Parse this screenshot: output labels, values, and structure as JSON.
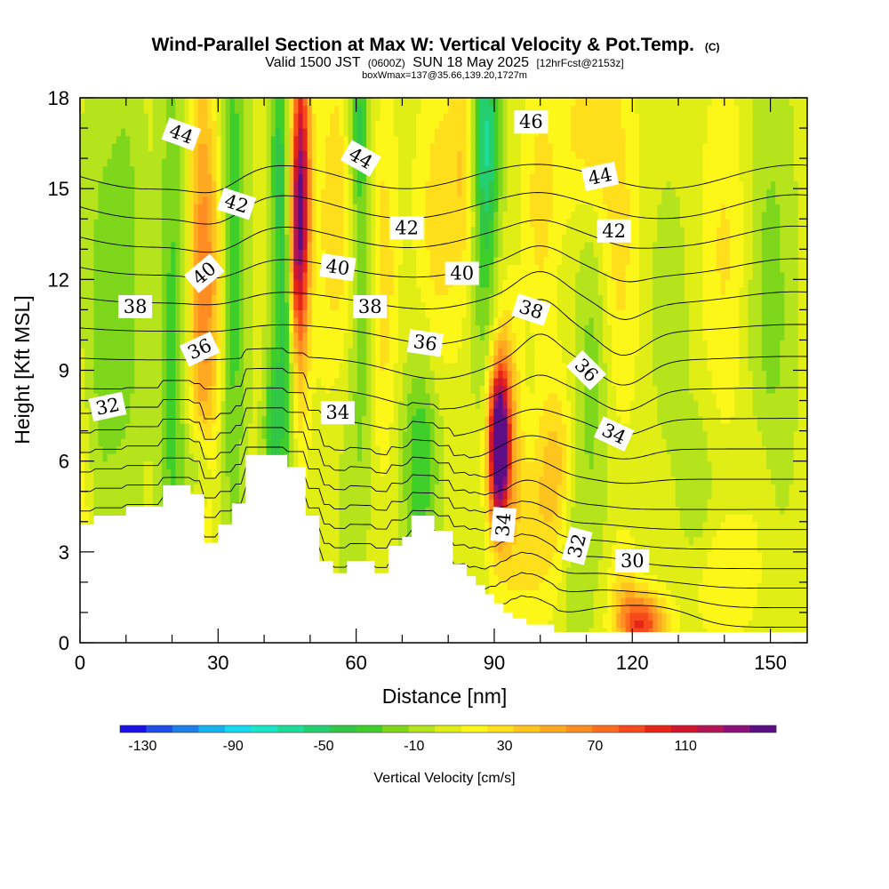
{
  "chart_data": {
    "type": "heatmap",
    "title": "Wind-Parallel Section at Max W: Vertical Velocity & Pot.Temp.",
    "title_suffix": "(C)",
    "subtitle_main": "Valid 1500 JST",
    "subtitle_z": "(0600Z)",
    "subtitle_date": "SUN 18 May 2025",
    "subtitle_fcst": "[12hrFcst@2153z]",
    "subtitle2": "boxWmax=137@35.66,139.20,1727m",
    "xlabel": "Distance [nm]",
    "ylabel": "Height [Kft MSL]",
    "xlim": [
      0,
      158
    ],
    "ylim": [
      0,
      18
    ],
    "x_ticks": [
      0,
      30,
      60,
      90,
      120,
      150
    ],
    "y_ticks": [
      0,
      3,
      6,
      9,
      12,
      15,
      18
    ],
    "colorbar": {
      "label": "Vertical Velocity [cm/s]",
      "range": [
        -140,
        150
      ],
      "tick_values": [
        -130,
        -90,
        -50,
        -10,
        30,
        70,
        110
      ],
      "tick_labels": [
        "-130",
        "-90",
        "-50",
        "-10",
        "30",
        "70",
        "110"
      ],
      "colors": [
        "#1a10e6",
        "#1f4de8",
        "#1f7fe8",
        "#16b2ee",
        "#15d9ee",
        "#1ae6c8",
        "#1edc99",
        "#24cf6f",
        "#31c646",
        "#3fcf2a",
        "#7fd71c",
        "#b6e41c",
        "#e0ee16",
        "#fdf719",
        "#ffdf1c",
        "#ffc51f",
        "#ffa923",
        "#ff8d22",
        "#ff6c1f",
        "#f74a1b",
        "#e52617",
        "#d0162d",
        "#b21454",
        "#8a107a",
        "#5d0d86"
      ]
    },
    "w_field": {
      "background": 4,
      "features": [
        {
          "x": 0,
          "z": 3,
          "sx": 3,
          "sz": 5,
          "amp": 22
        },
        {
          "x": 4,
          "z": 10,
          "sx": 4,
          "sz": 10,
          "amp": -18
        },
        {
          "x": 10,
          "z": 12,
          "sx": 4,
          "sz": 8,
          "amp": -22
        },
        {
          "x": 20,
          "z": 9,
          "sx": 3,
          "sz": 12,
          "amp": -32
        },
        {
          "x": 26,
          "z": 12,
          "sx": 2.5,
          "sz": 8,
          "amp": 45
        },
        {
          "x": 29,
          "z": 12,
          "sx": 3,
          "sz": 6,
          "amp": 40
        },
        {
          "x": 26,
          "z": 5.8,
          "sx": 2.5,
          "sz": 1.6,
          "amp": -32
        },
        {
          "x": 33,
          "z": 13,
          "sx": 3,
          "sz": 10,
          "amp": -40
        },
        {
          "x": 42,
          "z": 7,
          "sx": 2,
          "sz": 3,
          "amp": -45
        },
        {
          "x": 45,
          "z": 11,
          "sx": 2,
          "sz": 6,
          "amp": -55
        },
        {
          "x": 43,
          "z": 16,
          "sx": 2,
          "sz": 4,
          "amp": -35
        },
        {
          "x": 47,
          "z": 12,
          "sx": 2.3,
          "sz": 7,
          "amp": 25
        },
        {
          "x": 48,
          "z": 15,
          "sx": 2,
          "sz": 5,
          "amp": 110
        },
        {
          "x": 46.5,
          "z": 13,
          "sx": 1.7,
          "sz": 3,
          "amp": 45
        },
        {
          "x": 56,
          "z": 14,
          "sx": 5,
          "sz": 6,
          "amp": 28
        },
        {
          "x": 58,
          "z": 6,
          "sx": 4,
          "sz": 5,
          "amp": -10
        },
        {
          "x": 61,
          "z": 14,
          "sx": 2.5,
          "sz": 8,
          "amp": -35
        },
        {
          "x": 60,
          "z": 17,
          "sx": 2,
          "sz": 2,
          "amp": -25
        },
        {
          "x": 66,
          "z": 12,
          "sx": 3,
          "sz": 6,
          "amp": 25
        },
        {
          "x": 74,
          "z": 6,
          "sx": 4,
          "sz": 3.5,
          "amp": -40
        },
        {
          "x": 78,
          "z": 14,
          "sx": 5,
          "sz": 5,
          "amp": 25
        },
        {
          "x": 84,
          "z": 16,
          "sx": 3.5,
          "sz": 4,
          "amp": 28
        },
        {
          "x": 88,
          "z": 14,
          "sx": 3,
          "sz": 6,
          "amp": -40
        },
        {
          "x": 88,
          "z": 17,
          "sx": 3,
          "sz": 3,
          "amp": -40
        },
        {
          "x": 91,
          "z": 6.5,
          "sx": 2,
          "sz": 2.3,
          "amp": 150
        },
        {
          "x": 92,
          "z": 7,
          "sx": 3.5,
          "sz": 4,
          "amp": 60
        },
        {
          "x": 98,
          "z": 3.5,
          "sx": 5,
          "sz": 3.5,
          "amp": 25
        },
        {
          "x": 100,
          "z": 14,
          "sx": 4,
          "sz": 5,
          "amp": 25
        },
        {
          "x": 99,
          "z": 8,
          "sx": 5,
          "sz": 5,
          "amp": -10
        },
        {
          "x": 103,
          "z": 6,
          "sx": 4,
          "sz": 3,
          "amp": 35
        },
        {
          "x": 112,
          "z": 10,
          "sx": 4,
          "sz": 6,
          "amp": -28
        },
        {
          "x": 116,
          "z": 13,
          "sx": 5,
          "sz": 6,
          "amp": 28
        },
        {
          "x": 110,
          "z": 17,
          "sx": 6,
          "sz": 3,
          "amp": 25
        },
        {
          "x": 108,
          "z": 3,
          "sx": 3,
          "sz": 4,
          "amp": -15
        },
        {
          "x": 122,
          "z": 0.6,
          "sx": 5,
          "sz": 1.0,
          "amp": 90
        },
        {
          "x": 118,
          "z": 2.0,
          "sx": 3,
          "sz": 1.5,
          "amp": 25
        },
        {
          "x": 140,
          "z": 2,
          "sx": 8,
          "sz": 2,
          "amp": 18
        },
        {
          "x": 128,
          "z": 11,
          "sx": 4,
          "sz": 4,
          "amp": -15
        },
        {
          "x": 140,
          "z": 13,
          "sx": 5,
          "sz": 6,
          "amp": 20
        },
        {
          "x": 150,
          "z": 11,
          "sx": 5,
          "sz": 8,
          "amp": -22
        },
        {
          "x": 134,
          "z": 5,
          "sx": 4,
          "sz": 3,
          "amp": -15
        },
        {
          "x": 148,
          "z": 5,
          "sx": 4,
          "sz": 3,
          "amp": 12
        }
      ]
    },
    "terrain": [
      [
        0,
        3.9
      ],
      [
        3,
        4.2
      ],
      [
        10,
        4.5
      ],
      [
        18,
        5.2
      ],
      [
        24,
        4.9
      ],
      [
        27,
        3.3
      ],
      [
        30,
        3.9
      ],
      [
        33,
        4.6
      ],
      [
        36,
        6.2
      ],
      [
        45,
        5.8
      ],
      [
        49,
        4.2
      ],
      [
        52,
        2.7
      ],
      [
        55,
        2.3
      ],
      [
        58,
        2.7
      ],
      [
        64,
        2.3
      ],
      [
        67,
        3.2
      ],
      [
        70,
        3.5
      ],
      [
        72,
        4.2
      ],
      [
        77,
        3.7
      ],
      [
        81,
        2.6
      ],
      [
        84,
        2.2
      ],
      [
        86,
        1.9
      ],
      [
        88,
        1.6
      ],
      [
        90,
        1.3
      ],
      [
        92,
        1.0
      ],
      [
        94,
        0.8
      ],
      [
        97,
        0.6
      ],
      [
        103,
        0.35
      ],
      [
        158,
        0.35
      ]
    ],
    "theta_contours": {
      "levels": [
        29,
        30,
        31,
        32,
        33,
        34,
        35,
        36,
        37,
        38,
        39,
        40,
        41,
        42,
        43,
        44,
        45,
        46
      ],
      "labels": [
        {
          "text": "44",
          "x": 22,
          "z": 16.8,
          "angle": 20
        },
        {
          "text": "42",
          "x": 34,
          "z": 14.5,
          "angle": 18
        },
        {
          "text": "40",
          "x": 27,
          "z": 12.2,
          "angle": -40
        },
        {
          "text": "38",
          "x": 12,
          "z": 11.1,
          "angle": 0
        },
        {
          "text": "36",
          "x": 26,
          "z": 9.7,
          "angle": -25
        },
        {
          "text": "32",
          "x": 6,
          "z": 7.8,
          "angle": -12
        },
        {
          "text": "44",
          "x": 61,
          "z": 16.0,
          "angle": 30
        },
        {
          "text": "42",
          "x": 71,
          "z": 13.7,
          "angle": 0
        },
        {
          "text": "40",
          "x": 56,
          "z": 12.4,
          "angle": 8
        },
        {
          "text": "38",
          "x": 63,
          "z": 11.1,
          "angle": 0
        },
        {
          "text": "36",
          "x": 75,
          "z": 9.9,
          "angle": 8
        },
        {
          "text": "34",
          "x": 56,
          "z": 7.6,
          "angle": 0
        },
        {
          "text": "40",
          "x": 83,
          "z": 12.2,
          "angle": 0
        },
        {
          "text": "46",
          "x": 98,
          "z": 17.2,
          "angle": 0
        },
        {
          "text": "44",
          "x": 113,
          "z": 15.4,
          "angle": -12
        },
        {
          "text": "42",
          "x": 116,
          "z": 13.6,
          "angle": 0
        },
        {
          "text": "38",
          "x": 98,
          "z": 11.0,
          "angle": 18
        },
        {
          "text": "36",
          "x": 110,
          "z": 9.0,
          "angle": 45
        },
        {
          "text": "34",
          "x": 116,
          "z": 6.9,
          "angle": 25
        },
        {
          "text": "34",
          "x": 92,
          "z": 3.9,
          "angle": -85
        },
        {
          "text": "32",
          "x": 108,
          "z": 3.2,
          "angle": -75
        },
        {
          "text": "30",
          "x": 120,
          "z": 2.7,
          "angle": 0
        }
      ]
    }
  }
}
